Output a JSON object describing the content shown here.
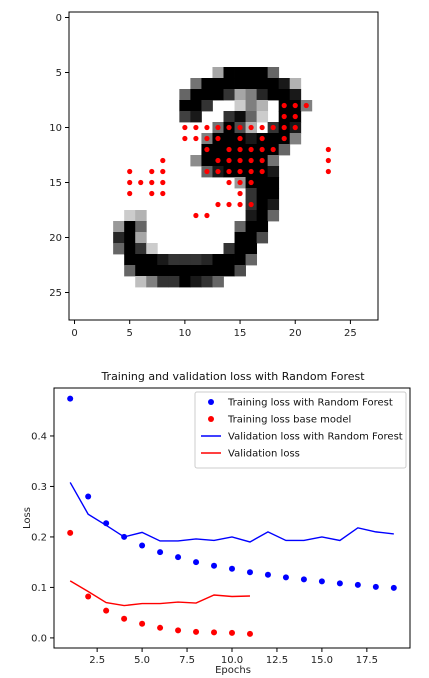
{
  "chart_data": [
    {
      "type": "heatmap",
      "title": "",
      "xlabel": "",
      "ylabel": "",
      "xlim": [
        -0.5,
        27.5
      ],
      "ylim": [
        27.5,
        -0.5
      ],
      "xticks": [
        0,
        5,
        10,
        15,
        20,
        25
      ],
      "yticks": [
        0,
        5,
        10,
        15,
        20,
        25
      ],
      "grid": false,
      "colormap": "gray_r",
      "pixels": [
        [
          13,
          5,
          0.35
        ],
        [
          14,
          5,
          1
        ],
        [
          15,
          5,
          1
        ],
        [
          16,
          5,
          1
        ],
        [
          17,
          5,
          1
        ],
        [
          18,
          5,
          0.6
        ],
        [
          11,
          6,
          0.55
        ],
        [
          12,
          6,
          1
        ],
        [
          13,
          6,
          1
        ],
        [
          14,
          6,
          1
        ],
        [
          15,
          6,
          1
        ],
        [
          16,
          6,
          1
        ],
        [
          17,
          6,
          1
        ],
        [
          18,
          6,
          1
        ],
        [
          19,
          6,
          0.9
        ],
        [
          20,
          6,
          0.3
        ],
        [
          10,
          7,
          0.6
        ],
        [
          11,
          7,
          1
        ],
        [
          12,
          7,
          1
        ],
        [
          13,
          7,
          1
        ],
        [
          14,
          7,
          0.8
        ],
        [
          15,
          7,
          0.35
        ],
        [
          16,
          7,
          0.5
        ],
        [
          17,
          7,
          0.85
        ],
        [
          18,
          7,
          1
        ],
        [
          19,
          7,
          1
        ],
        [
          20,
          7,
          0.9
        ],
        [
          10,
          8,
          1
        ],
        [
          11,
          8,
          1
        ],
        [
          12,
          8,
          0.8
        ],
        [
          15,
          8,
          0.2
        ],
        [
          16,
          8,
          0.5
        ],
        [
          17,
          8,
          0.3
        ],
        [
          19,
          8,
          1
        ],
        [
          20,
          8,
          1
        ],
        [
          21,
          8,
          0.5
        ],
        [
          10,
          9,
          0.75
        ],
        [
          11,
          9,
          0.9
        ],
        [
          14,
          9,
          0.8
        ],
        [
          15,
          9,
          0.95
        ],
        [
          16,
          9,
          0.6
        ],
        [
          17,
          9,
          0.2
        ],
        [
          19,
          9,
          1
        ],
        [
          20,
          9,
          1
        ],
        [
          13,
          10,
          0.55
        ],
        [
          14,
          10,
          1
        ],
        [
          15,
          10,
          0.7
        ],
        [
          16,
          10,
          0.3
        ],
        [
          18,
          10,
          0.8
        ],
        [
          19,
          10,
          1
        ],
        [
          20,
          10,
          0.9
        ],
        [
          12,
          11,
          0.5
        ],
        [
          13,
          11,
          1
        ],
        [
          14,
          11,
          1
        ],
        [
          15,
          11,
          1
        ],
        [
          16,
          11,
          0.9
        ],
        [
          17,
          11,
          1
        ],
        [
          18,
          11,
          1
        ],
        [
          19,
          11,
          1
        ],
        [
          20,
          11,
          0.5
        ],
        [
          12,
          12,
          1
        ],
        [
          13,
          12,
          1
        ],
        [
          14,
          12,
          1
        ],
        [
          15,
          12,
          1
        ],
        [
          16,
          12,
          1
        ],
        [
          17,
          12,
          1
        ],
        [
          18,
          12,
          1
        ],
        [
          19,
          12,
          0.6
        ],
        [
          11,
          13,
          0.45
        ],
        [
          12,
          13,
          1
        ],
        [
          13,
          13,
          1
        ],
        [
          14,
          13,
          1
        ],
        [
          15,
          13,
          1
        ],
        [
          16,
          13,
          1
        ],
        [
          17,
          13,
          1
        ],
        [
          18,
          13,
          0.55
        ],
        [
          12,
          14,
          0.6
        ],
        [
          13,
          14,
          0.9
        ],
        [
          14,
          14,
          1
        ],
        [
          15,
          14,
          1
        ],
        [
          16,
          14,
          1
        ],
        [
          17,
          14,
          1
        ],
        [
          18,
          14,
          0.9
        ],
        [
          15,
          15,
          0.4
        ],
        [
          16,
          15,
          1
        ],
        [
          17,
          15,
          1
        ],
        [
          18,
          15,
          1
        ],
        [
          16,
          16,
          0.8
        ],
        [
          17,
          16,
          1
        ],
        [
          18,
          16,
          1
        ],
        [
          16,
          17,
          0.8
        ],
        [
          17,
          17,
          1
        ],
        [
          18,
          17,
          0.9
        ],
        [
          5,
          18,
          0.2
        ],
        [
          6,
          18,
          0.3
        ],
        [
          16,
          18,
          0.9
        ],
        [
          17,
          18,
          1
        ],
        [
          18,
          18,
          0.6
        ],
        [
          4,
          19,
          0.4
        ],
        [
          5,
          19,
          1
        ],
        [
          6,
          19,
          0.6
        ],
        [
          15,
          19,
          0.6
        ],
        [
          16,
          19,
          1
        ],
        [
          17,
          19,
          1
        ],
        [
          4,
          20,
          0.85
        ],
        [
          5,
          20,
          1
        ],
        [
          6,
          20,
          0.35
        ],
        [
          15,
          20,
          1
        ],
        [
          16,
          20,
          1
        ],
        [
          17,
          20,
          0.7
        ],
        [
          4,
          21,
          0.6
        ],
        [
          5,
          21,
          1
        ],
        [
          6,
          21,
          0.8
        ],
        [
          7,
          21,
          0.2
        ],
        [
          14,
          21,
          0.8
        ],
        [
          15,
          21,
          1
        ],
        [
          16,
          21,
          1
        ],
        [
          5,
          22,
          1
        ],
        [
          6,
          22,
          1
        ],
        [
          7,
          22,
          1
        ],
        [
          8,
          22,
          0.9
        ],
        [
          9,
          22,
          0.8
        ],
        [
          10,
          22,
          0.8
        ],
        [
          11,
          22,
          0.8
        ],
        [
          12,
          22,
          0.85
        ],
        [
          13,
          22,
          1
        ],
        [
          14,
          22,
          1
        ],
        [
          15,
          22,
          1
        ],
        [
          16,
          22,
          0.6
        ],
        [
          5,
          23,
          0.6
        ],
        [
          6,
          23,
          1
        ],
        [
          7,
          23,
          1
        ],
        [
          8,
          23,
          1
        ],
        [
          9,
          23,
          1
        ],
        [
          10,
          23,
          1
        ],
        [
          11,
          23,
          1
        ],
        [
          12,
          23,
          1
        ],
        [
          13,
          23,
          1
        ],
        [
          14,
          23,
          1
        ],
        [
          15,
          23,
          0.7
        ],
        [
          6,
          24,
          0.25
        ],
        [
          7,
          24,
          0.5
        ],
        [
          8,
          24,
          0.8
        ],
        [
          9,
          24,
          0.8
        ],
        [
          10,
          24,
          1
        ],
        [
          11,
          24,
          0.9
        ],
        [
          12,
          24,
          0.8
        ],
        [
          13,
          24,
          0.6
        ]
      ],
      "markers": [
        [
          19,
          8
        ],
        [
          20,
          8
        ],
        [
          21,
          8
        ],
        [
          19,
          9
        ],
        [
          20,
          9
        ],
        [
          14,
          10
        ],
        [
          16,
          10
        ],
        [
          19,
          10
        ],
        [
          20,
          10
        ],
        [
          10,
          10
        ],
        [
          11,
          10
        ],
        [
          12,
          10
        ],
        [
          13,
          10
        ],
        [
          15,
          10
        ],
        [
          17,
          10
        ],
        [
          18,
          10
        ],
        [
          10,
          11
        ],
        [
          11,
          11
        ],
        [
          12,
          11
        ],
        [
          13,
          11
        ],
        [
          15,
          11
        ],
        [
          17,
          11
        ],
        [
          19,
          11
        ],
        [
          12,
          12
        ],
        [
          14,
          12
        ],
        [
          15,
          12
        ],
        [
          16,
          12
        ],
        [
          17,
          12
        ],
        [
          18,
          12
        ],
        [
          23,
          12
        ],
        [
          13,
          13
        ],
        [
          14,
          13
        ],
        [
          15,
          13
        ],
        [
          16,
          13
        ],
        [
          17,
          13
        ],
        [
          23,
          13
        ],
        [
          8,
          13
        ],
        [
          12,
          14
        ],
        [
          13,
          14
        ],
        [
          14,
          14
        ],
        [
          15,
          14
        ],
        [
          16,
          14
        ],
        [
          17,
          14
        ],
        [
          23,
          14
        ],
        [
          5,
          14
        ],
        [
          7,
          14
        ],
        [
          8,
          14
        ],
        [
          5,
          15
        ],
        [
          6,
          15
        ],
        [
          7,
          15
        ],
        [
          8,
          15
        ],
        [
          14,
          15
        ],
        [
          15,
          15
        ],
        [
          16,
          15
        ],
        [
          5,
          16
        ],
        [
          7,
          16
        ],
        [
          8,
          16
        ],
        [
          15,
          16
        ],
        [
          13,
          17
        ],
        [
          14,
          17
        ],
        [
          15,
          17
        ],
        [
          16,
          17
        ],
        [
          11,
          18
        ],
        [
          12,
          18
        ]
      ],
      "marker_color": "#ff0000"
    },
    {
      "type": "line",
      "title": "Training and validation loss with Random Forest",
      "xlabel": "Epochs",
      "ylabel": "Loss",
      "xlim": [
        0.1,
        19.9
      ],
      "ylim": [
        -0.02,
        0.495
      ],
      "xticks": [
        2.5,
        5.0,
        7.5,
        10.0,
        12.5,
        15.0,
        17.5
      ],
      "yticks": [
        0.0,
        0.1,
        0.2,
        0.3,
        0.4
      ],
      "legend": "top-right",
      "series": [
        {
          "name": "Training loss with Random Forest",
          "style": "scatter",
          "color": "#0000ff",
          "x": [
            1,
            2,
            3,
            4,
            5,
            6,
            7,
            8,
            9,
            10,
            11,
            12,
            13,
            14,
            15,
            16,
            17,
            18,
            19
          ],
          "values": [
            0.474,
            0.28,
            0.227,
            0.2,
            0.183,
            0.17,
            0.16,
            0.15,
            0.143,
            0.137,
            0.13,
            0.125,
            0.12,
            0.116,
            0.112,
            0.108,
            0.105,
            0.101,
            0.099
          ]
        },
        {
          "name": "Training loss base model",
          "style": "scatter",
          "color": "#ff0000",
          "x": [
            1,
            2,
            3,
            4,
            5,
            6,
            7,
            8,
            9,
            10,
            11
          ],
          "values": [
            0.208,
            0.082,
            0.054,
            0.038,
            0.028,
            0.02,
            0.015,
            0.012,
            0.011,
            0.01,
            0.008
          ]
        },
        {
          "name": "Validation loss with Random Forest",
          "style": "line",
          "color": "#0000ff",
          "x": [
            1,
            2,
            3,
            4,
            5,
            6,
            7,
            8,
            9,
            10,
            11,
            12,
            13,
            14,
            15,
            16,
            17,
            18,
            19
          ],
          "values": [
            0.308,
            0.245,
            0.223,
            0.2,
            0.209,
            0.192,
            0.192,
            0.196,
            0.193,
            0.2,
            0.19,
            0.21,
            0.193,
            0.193,
            0.2,
            0.193,
            0.218,
            0.21,
            0.206
          ]
        },
        {
          "name": "Validation loss",
          "style": "line",
          "color": "#ff0000",
          "x": [
            1,
            2,
            3,
            4,
            5,
            6,
            7,
            8,
            9,
            10,
            11
          ],
          "values": [
            0.113,
            0.092,
            0.07,
            0.064,
            0.068,
            0.068,
            0.071,
            0.069,
            0.085,
            0.082,
            0.083
          ]
        }
      ]
    }
  ]
}
